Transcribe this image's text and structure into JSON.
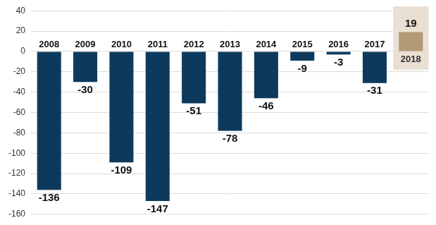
{
  "chart_data": {
    "type": "bar",
    "categories": [
      "2008",
      "2009",
      "2010",
      "2011",
      "2012",
      "2013",
      "2014",
      "2015",
      "2016",
      "2017",
      "2018"
    ],
    "values": [
      -136,
      -30,
      -109,
      -147,
      -51,
      -78,
      -46,
      -9,
      -3,
      -31,
      19
    ],
    "colors": [
      "#0d3a5c",
      "#0d3a5c",
      "#0d3a5c",
      "#0d3a5c",
      "#0d3a5c",
      "#0d3a5c",
      "#0d3a5c",
      "#0d3a5c",
      "#0d3a5c",
      "#0d3a5c",
      "#b39a77"
    ],
    "ylim": [
      -160,
      40
    ],
    "yticks": [
      -160,
      -140,
      -120,
      -100,
      -80,
      -60,
      -40,
      -20,
      0,
      20,
      40
    ],
    "grid": true,
    "data_labels": true
  }
}
